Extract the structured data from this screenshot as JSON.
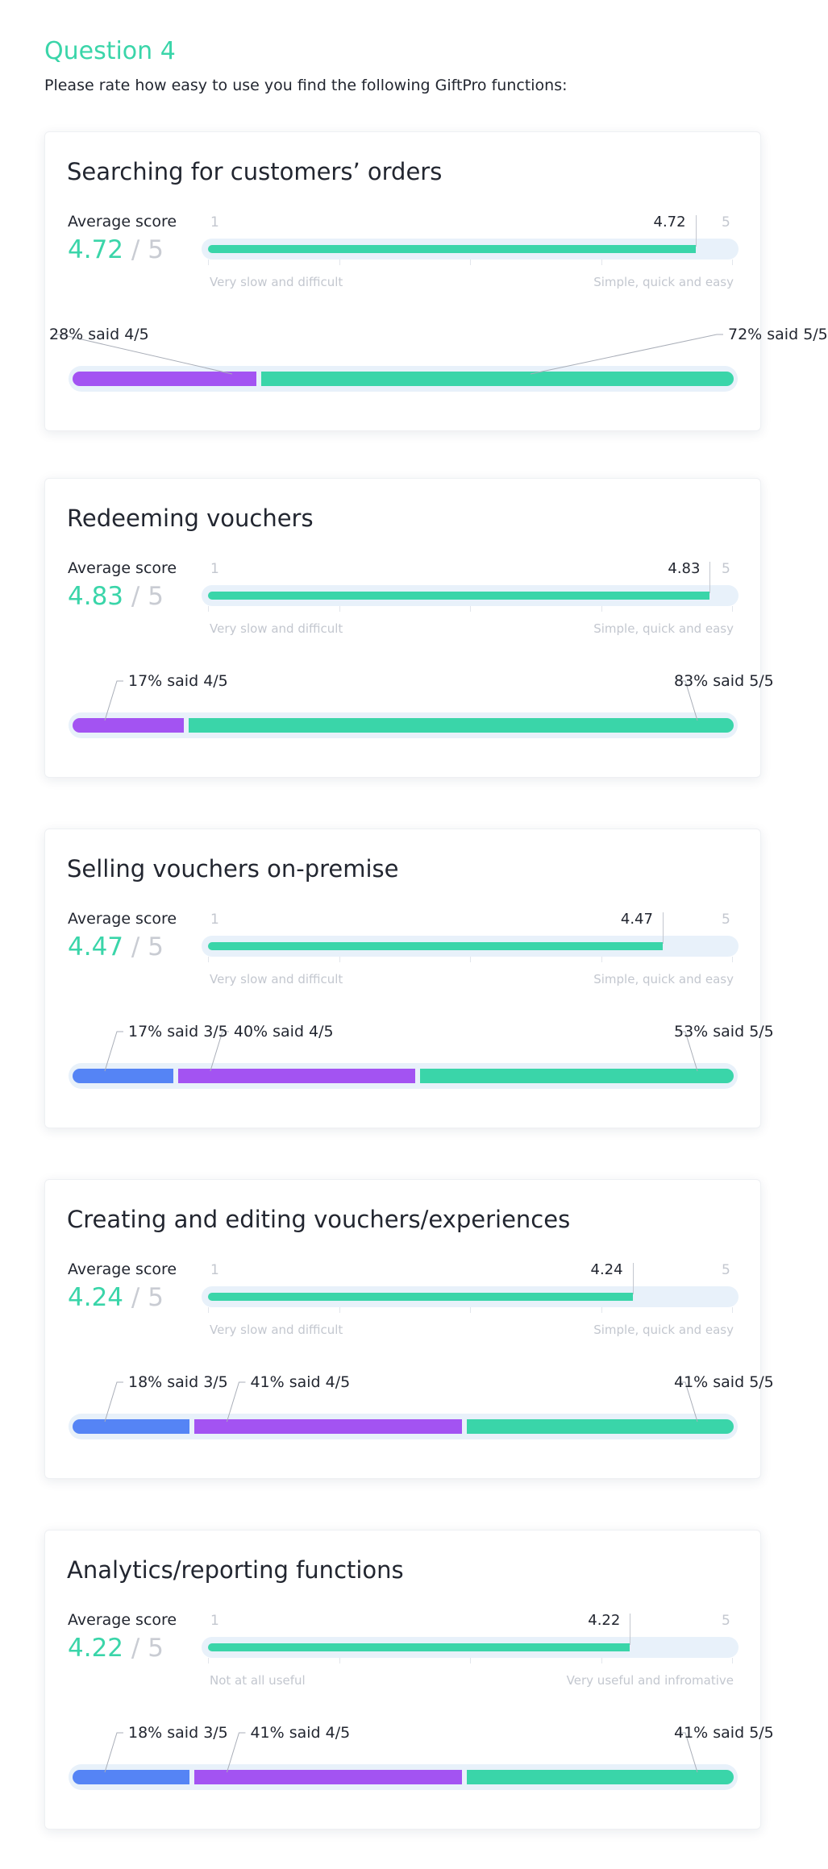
{
  "page": {
    "title": "Question 4",
    "subtitle": "Please rate how easy to use you find the following GiftPro functions:"
  },
  "common": {
    "avg_label": "Average score",
    "denominator": "/ 5",
    "scale_min_label": "1",
    "scale_max_label": "5"
  },
  "colors": {
    "score_3": "#5584f5",
    "score_4": "#a353f2",
    "score_5": "#3ad5a9",
    "track": "#e8f1fa"
  },
  "chart_data": [
    {
      "type": "bar",
      "title": "Searching for customers’ orders",
      "average": 4.72,
      "average_text": "4.72",
      "scale": [
        1,
        5
      ],
      "low_label": "Very slow and difficult",
      "high_label": "Simple, quick and easy",
      "distribution": [
        {
          "score": 4,
          "percent": 28,
          "label": "28% said 4/5"
        },
        {
          "score": 5,
          "percent": 72,
          "label": "72% said 5/5"
        }
      ]
    },
    {
      "type": "bar",
      "title": "Redeeming vouchers",
      "average": 4.83,
      "average_text": "4.83",
      "scale": [
        1,
        5
      ],
      "low_label": "Very slow and difficult",
      "high_label": "Simple, quick and easy",
      "distribution": [
        {
          "score": 4,
          "percent": 17,
          "label": "17% said 4/5"
        },
        {
          "score": 5,
          "percent": 83,
          "label": "83% said 5/5"
        }
      ]
    },
    {
      "type": "bar",
      "title": "Selling vouchers on-premise",
      "average": 4.47,
      "average_text": "4.47",
      "scale": [
        1,
        5
      ],
      "low_label": "Very slow and difficult",
      "high_label": "Simple, quick and easy",
      "distribution": [
        {
          "score": 3,
          "percent": 17,
          "label": "17% said 3/5"
        },
        {
          "score": 4,
          "percent": 40,
          "label": "40% said 4/5"
        },
        {
          "score": 5,
          "percent": 53,
          "label": "53% said 5/5"
        }
      ]
    },
    {
      "type": "bar",
      "title": "Creating and editing vouchers/experiences",
      "average": 4.24,
      "average_text": "4.24",
      "scale": [
        1,
        5
      ],
      "low_label": "Very slow and difficult",
      "high_label": "Simple, quick and easy",
      "distribution": [
        {
          "score": 3,
          "percent": 18,
          "label": "18% said 3/5"
        },
        {
          "score": 4,
          "percent": 41,
          "label": "41% said 4/5"
        },
        {
          "score": 5,
          "percent": 41,
          "label": "41% said 5/5"
        }
      ]
    },
    {
      "type": "bar",
      "title": "Analytics/reporting functions",
      "average": 4.22,
      "average_text": "4.22",
      "scale": [
        1,
        5
      ],
      "low_label": "Not at all useful",
      "high_label": "Very useful and infromative",
      "distribution": [
        {
          "score": 3,
          "percent": 18,
          "label": "18% said 3/5"
        },
        {
          "score": 4,
          "percent": 41,
          "label": "41% said 4/5"
        },
        {
          "score": 5,
          "percent": 41,
          "label": "41% said 5/5"
        }
      ]
    }
  ]
}
